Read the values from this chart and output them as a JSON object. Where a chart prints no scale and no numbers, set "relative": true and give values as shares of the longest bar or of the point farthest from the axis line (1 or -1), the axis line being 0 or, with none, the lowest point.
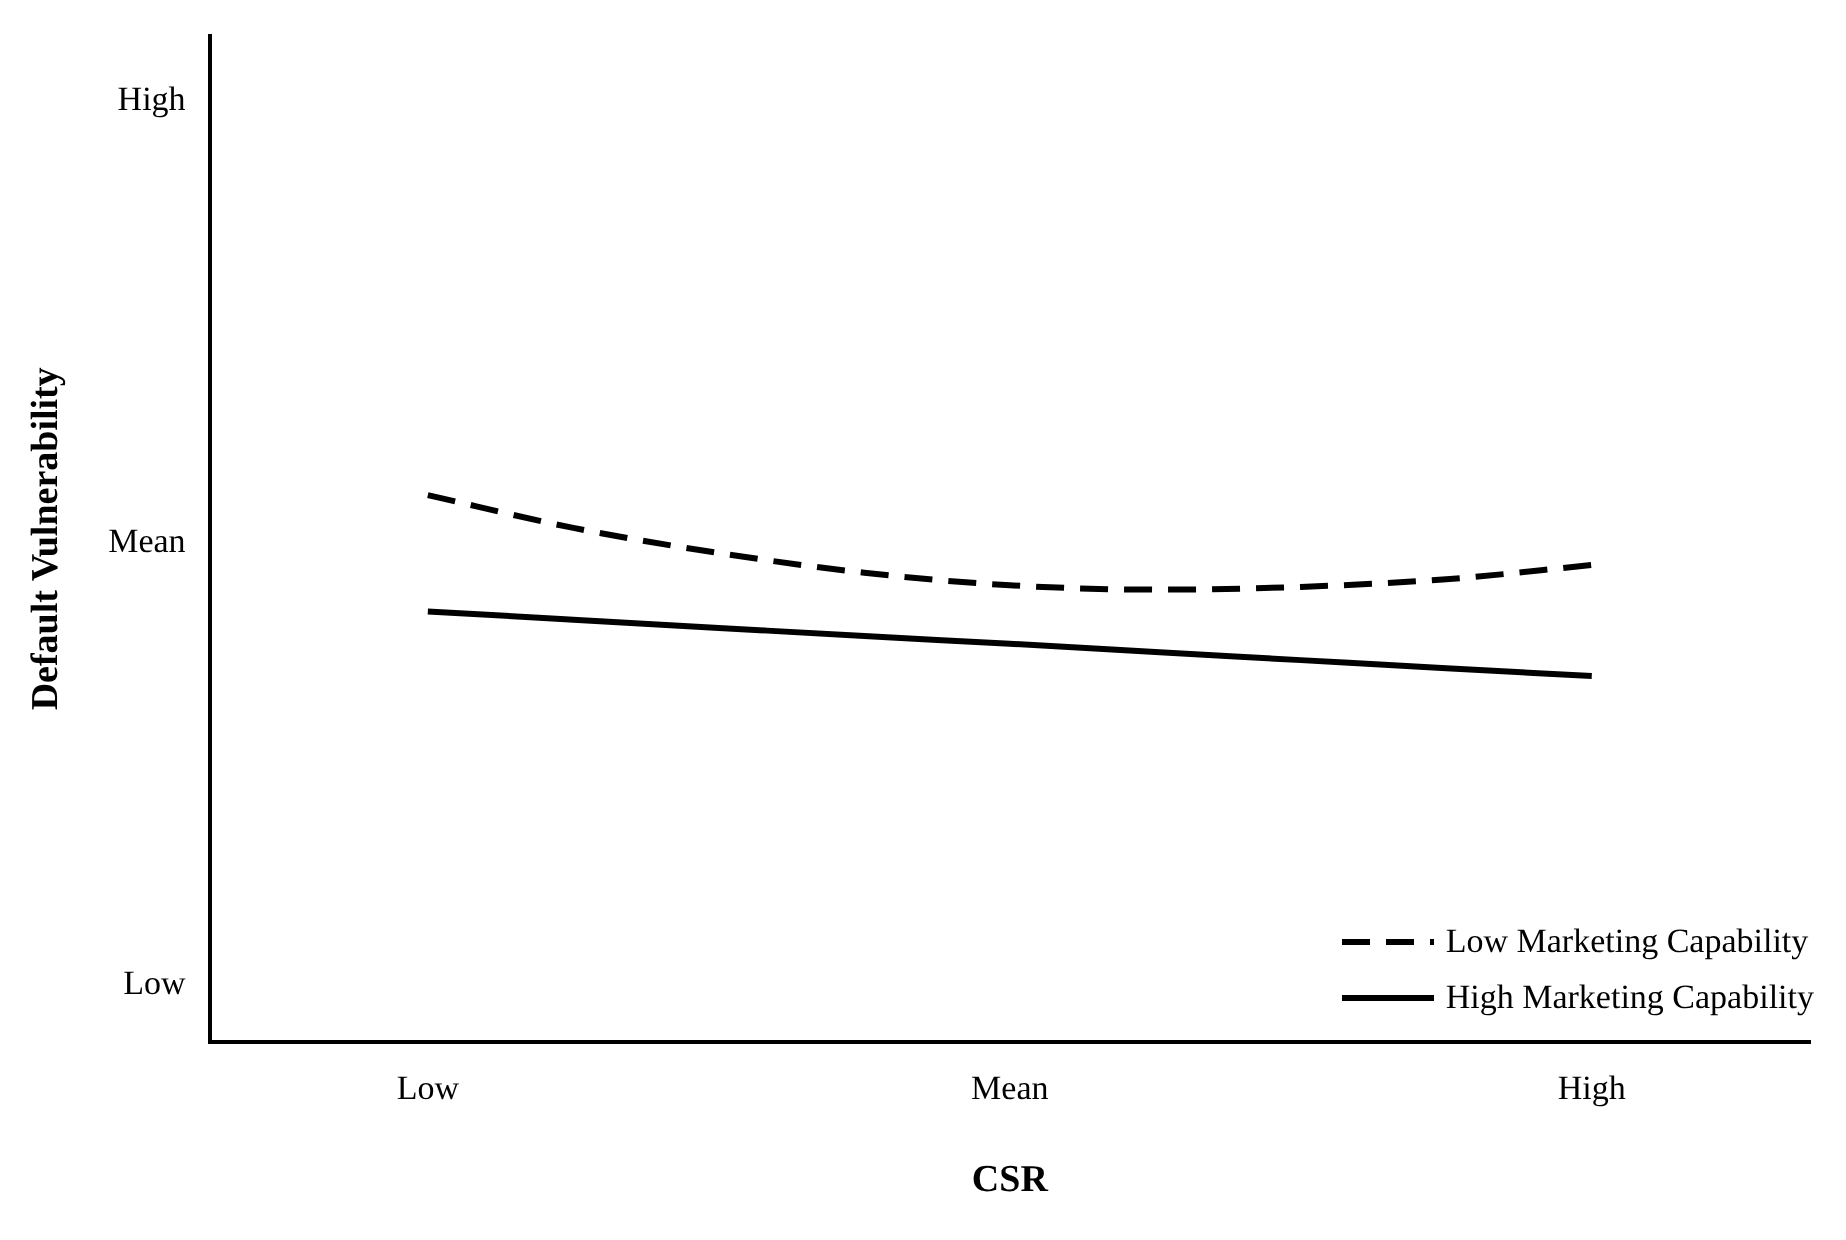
{
  "chart_data": {
    "type": "line",
    "xlabel": "CSR",
    "ylabel": "Default Vulnerability",
    "relative": true,
    "categories": [
      null,
      "Low",
      null,
      null,
      null,
      "Mean",
      null,
      null,
      null,
      "High",
      null
    ],
    "annotations": [
      "Low",
      "Mean",
      "High"
    ],
    "grid": false,
    "legend": "bottom right",
    "marker": "none",
    "series": [
      {
        "name": "Low Marketing Capability",
        "color": "#000000",
        "line_style": "dashed",
        "values": [
          null,
          1,
          0.94,
          0.894,
          0.858,
          0.835,
          0.827,
          0.832,
          0.846,
          0.872,
          null
        ]
      },
      {
        "name": "High Marketing Capability",
        "color": "#000000",
        "line_style": "solid",
        "values": [
          null,
          0.787,
          0.772,
          0.757,
          0.742,
          0.728,
          0.713,
          0.698,
          0.683,
          0.669,
          null
        ]
      }
    ]
  }
}
